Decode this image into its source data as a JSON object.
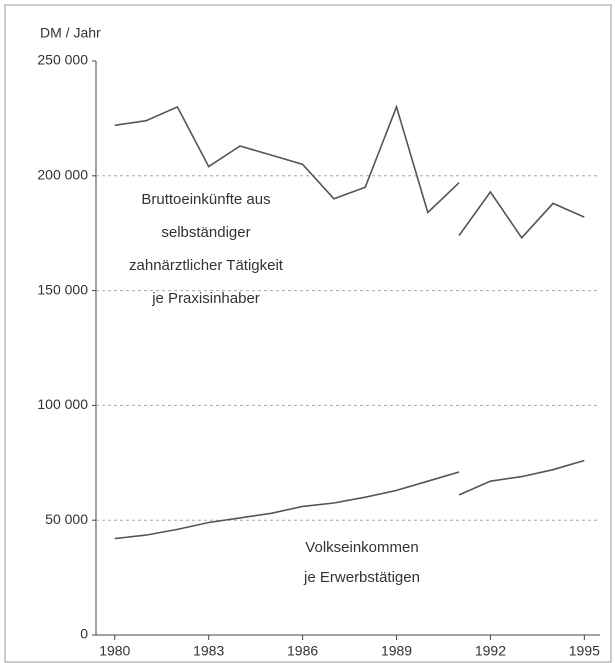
{
  "chart_data": {
    "type": "line",
    "y_unit_label": "DM / Jahr",
    "annotations": [
      {
        "lines": [
          "Bruttoeinkünfte aus",
          "selbständiger",
          "zahnärztlicher Tätigkeit",
          "je Praxisinhaber"
        ]
      },
      {
        "lines": [
          "Volkseinkommen",
          "je Erwerbstätigen"
        ]
      }
    ],
    "series": [
      {
        "color": "#555555",
        "x": [
          1980,
          1981,
          1982,
          1983,
          1984,
          1985,
          1986,
          1987,
          1988,
          1989,
          1990,
          1991,
          null,
          1991,
          1992,
          1993,
          1994,
          1995
        ],
        "values": [
          222000,
          224000,
          230000,
          204000,
          213000,
          209000,
          205000,
          190000,
          195000,
          230000,
          184000,
          197000,
          null,
          174000,
          193000,
          173000,
          188000,
          182000
        ]
      },
      {
        "color": "#555555",
        "x": [
          1980,
          1981,
          1982,
          1983,
          1984,
          1985,
          1986,
          1987,
          1988,
          1989,
          1990,
          1991,
          null,
          1991,
          1992,
          1993,
          1994,
          1995
        ],
        "values": [
          42000,
          43500,
          46000,
          49000,
          51000,
          53000,
          56000,
          57500,
          60000,
          63000,
          67000,
          71000,
          null,
          61000,
          67000,
          69000,
          72000,
          76000
        ]
      }
    ],
    "xlim": [
      1979.4,
      1995.5
    ],
    "xticks": [
      1980,
      1983,
      1986,
      1989,
      1992,
      1995
    ],
    "ylim": [
      0,
      250000
    ],
    "yticks": [
      0,
      {
        "value": 50000,
        "label": "50 000"
      },
      {
        "value": 100000,
        "label": "100 000"
      },
      {
        "value": 150000,
        "label": "150 000"
      },
      {
        "value": 200000,
        "label": "200 000"
      },
      {
        "value": 250000,
        "label": "250 000"
      }
    ],
    "grid": true
  }
}
